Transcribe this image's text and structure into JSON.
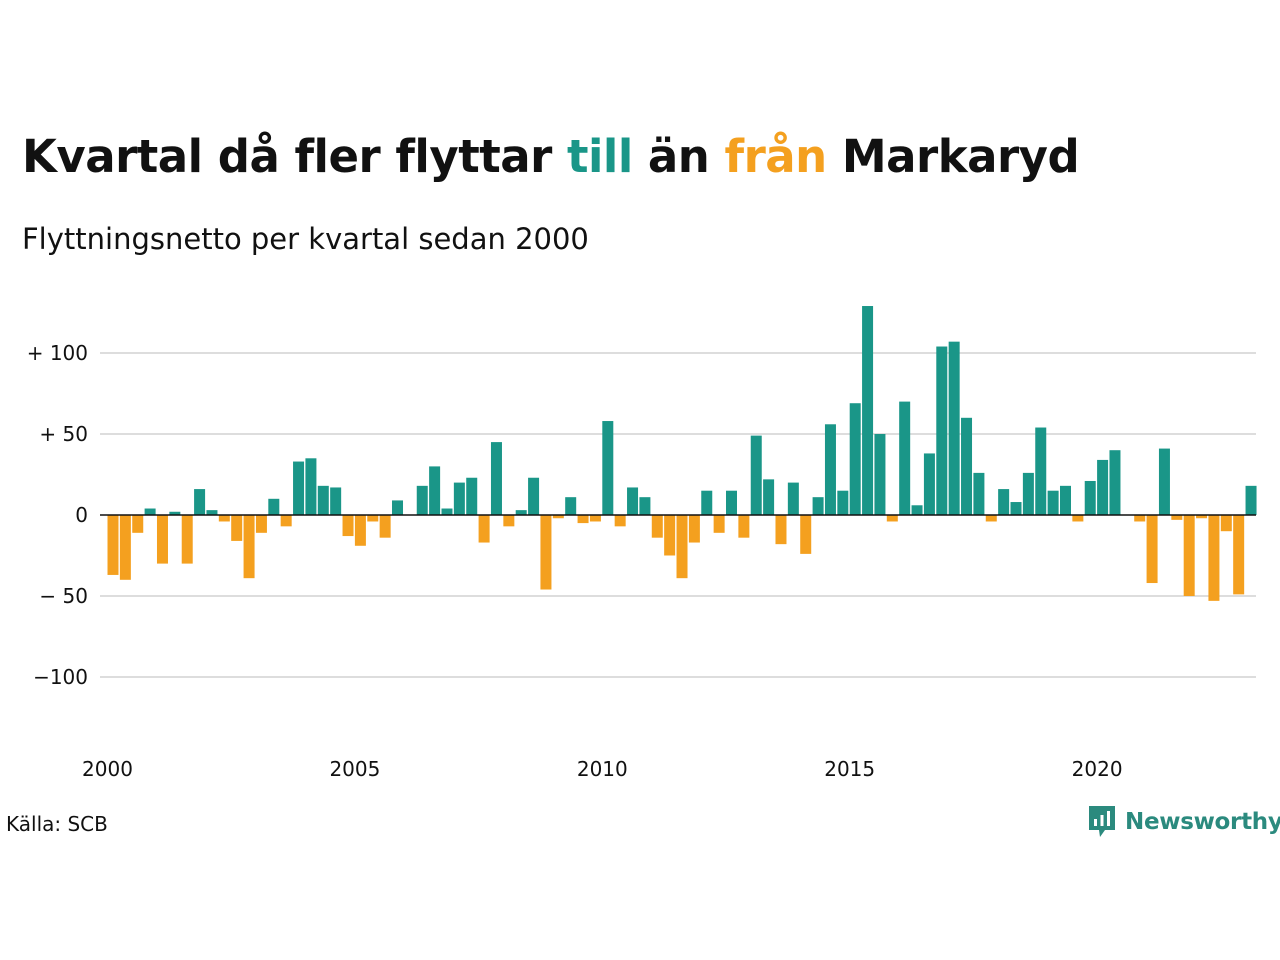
{
  "title": {
    "part1": "Kvartal då fler flyttar ",
    "part2": "till",
    "part3": " än ",
    "part4": "från",
    "part5": " Markaryd"
  },
  "subtitle": "Flyttningsnetto per kvartal sedan 2000",
  "source": "Källa: SCB",
  "logo": {
    "text": "Newsworthy"
  },
  "colors": {
    "positive": "#1a9688",
    "negative": "#f4a01f",
    "grid": "#dddddd",
    "axis": "#111111",
    "logo": "#2b8a7e"
  },
  "chart_data": {
    "type": "bar",
    "title": "Kvartal då fler flyttar till än från Markaryd",
    "subtitle": "Flyttningsnetto per kvartal sedan 2000",
    "x_start": "2000-Q1",
    "x_ticks": [
      "2000",
      "2005",
      "2010",
      "2015",
      "2020"
    ],
    "y_ticks": [
      100,
      50,
      0,
      -50,
      -100
    ],
    "y_tick_labels": [
      "+ 100",
      "+  50",
      "0",
      "− 50",
      "−100"
    ],
    "ylim": [
      -150,
      130
    ],
    "grid": true,
    "values": [
      -37,
      -40,
      -11,
      4,
      -30,
      2,
      -30,
      16,
      3,
      -4,
      -16,
      -39,
      -11,
      10,
      -7,
      33,
      35,
      18,
      17,
      -13,
      -19,
      -4,
      -14,
      9,
      0,
      18,
      30,
      4,
      20,
      23,
      -17,
      45,
      -7,
      3,
      23,
      -46,
      -2,
      11,
      -5,
      -4,
      58,
      -7,
      17,
      11,
      -14,
      -25,
      -39,
      -17,
      15,
      -11,
      15,
      -14,
      49,
      22,
      -18,
      20,
      -24,
      11,
      56,
      15,
      69,
      129,
      50,
      -4,
      70,
      6,
      38,
      104,
      107,
      60,
      26,
      -4,
      16,
      8,
      26,
      54,
      15,
      18,
      -4,
      21,
      34,
      40,
      0,
      -4,
      -42,
      41,
      -3,
      -50,
      -2,
      -53,
      -10,
      -49,
      18
    ]
  }
}
